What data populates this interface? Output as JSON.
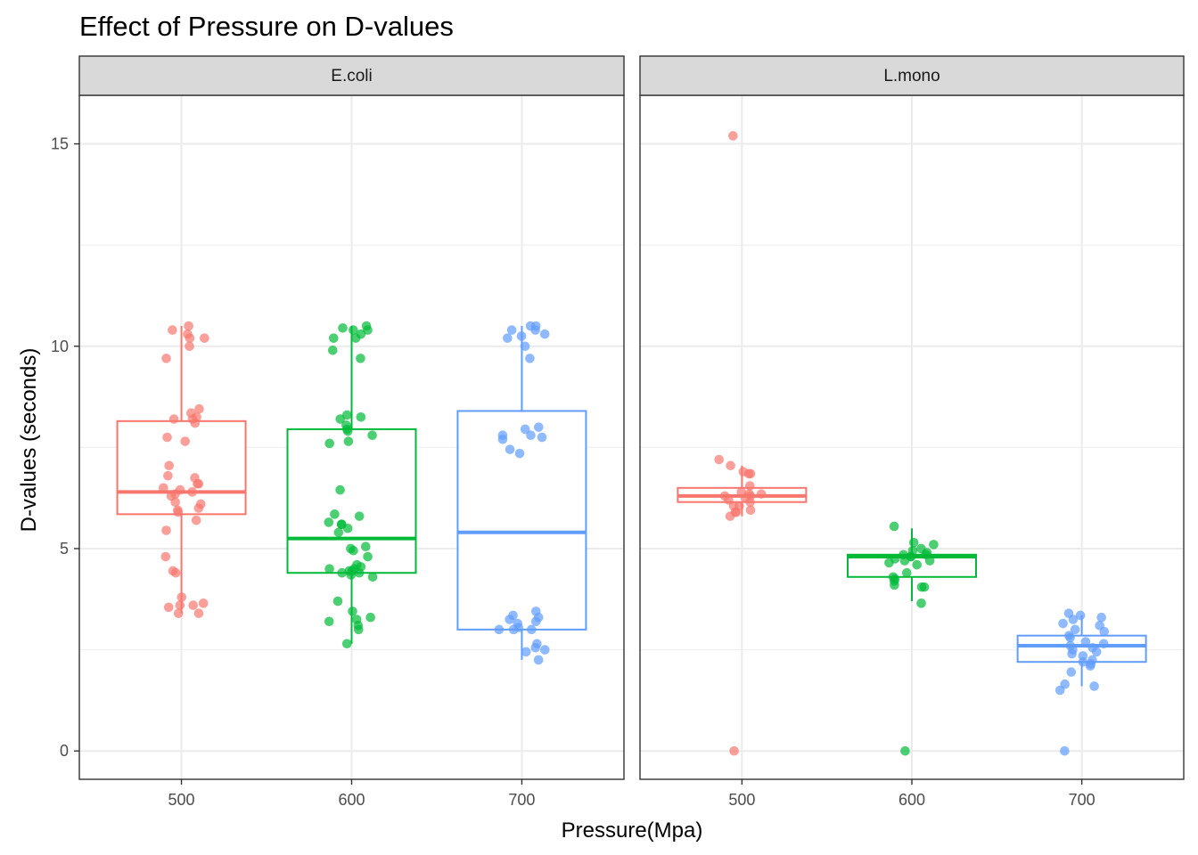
{
  "chart_data": {
    "type": "boxplot",
    "title": "Effect of Pressure on D-values",
    "xlabel": "Pressure(Mpa)",
    "ylabel": "D-values (seconds)",
    "ylim": [
      -0.7,
      16.2
    ],
    "y_ticks": [
      0,
      5,
      10,
      15
    ],
    "x_categories": [
      "500",
      "600",
      "700"
    ],
    "grid": true,
    "legend": "none",
    "series_colors": {
      "500": "#F8766D",
      "600": "#00BA38",
      "700": "#619CFF"
    },
    "panels": [
      {
        "name": "E.coli",
        "boxes": [
          {
            "category": "500",
            "min": 3.4,
            "q1": 5.85,
            "median": 6.4,
            "q3": 8.15,
            "max": 10.5,
            "points": [
              10.5,
              10.4,
              10.3,
              10.2,
              10.2,
              10.0,
              9.7,
              8.45,
              8.35,
              8.25,
              8.2,
              8.2,
              8.1,
              7.75,
              7.65,
              7.05,
              6.8,
              6.75,
              6.6,
              6.6,
              6.5,
              6.45,
              6.4,
              6.35,
              6.3,
              6.15,
              6.1,
              6.0,
              5.95,
              5.9,
              5.7,
              5.45,
              4.8,
              4.45,
              4.4,
              3.8,
              3.65,
              3.6,
              3.6,
              3.55,
              3.4,
              3.4
            ]
          },
          {
            "category": "600",
            "min": 2.65,
            "q1": 4.4,
            "median": 5.25,
            "q3": 7.95,
            "max": 10.5,
            "points": [
              10.5,
              10.45,
              10.4,
              10.4,
              10.3,
              10.2,
              10.2,
              9.9,
              9.7,
              8.3,
              8.25,
              8.2,
              8.05,
              7.95,
              7.9,
              7.8,
              7.65,
              7.6,
              6.45,
              5.85,
              5.8,
              5.65,
              5.6,
              5.6,
              5.5,
              5.4,
              5.05,
              5.0,
              4.95,
              4.8,
              4.6,
              4.55,
              4.5,
              4.5,
              4.45,
              4.45,
              4.4,
              4.4,
              4.35,
              4.3,
              3.7,
              3.45,
              3.3,
              3.25,
              3.2,
              3.1,
              3.0,
              2.65
            ]
          },
          {
            "category": "700",
            "min": 2.25,
            "q1": 3.0,
            "median": 5.4,
            "q3": 8.4,
            "max": 10.5,
            "points": [
              10.5,
              10.5,
              10.4,
              10.4,
              10.3,
              10.25,
              10.2,
              10.0,
              9.7,
              8.0,
              7.95,
              7.8,
              7.8,
              7.75,
              7.7,
              7.45,
              7.35,
              3.45,
              3.35,
              3.3,
              3.25,
              3.2,
              3.15,
              3.05,
              3.0,
              3.0,
              3.0,
              2.65,
              2.55,
              2.5,
              2.45,
              2.25
            ]
          }
        ]
      },
      {
        "name": "L.mono",
        "boxes": [
          {
            "category": "500",
            "min": 5.8,
            "q1": 6.15,
            "median": 6.3,
            "q3": 6.5,
            "max": 7.05,
            "points": [
              15.2,
              7.2,
              7.05,
              6.9,
              6.85,
              6.85,
              6.55,
              6.4,
              6.35,
              6.35,
              6.3,
              6.3,
              6.25,
              6.2,
              6.15,
              6.05,
              6.05,
              5.95,
              5.9,
              5.9,
              5.8,
              0.0
            ]
          },
          {
            "category": "600",
            "min": 3.7,
            "q1": 4.3,
            "median": 4.8,
            "q3": 4.85,
            "max": 5.5,
            "points": [
              5.55,
              5.15,
              5.1,
              5.0,
              4.95,
              4.9,
              4.85,
              4.85,
              4.8,
              4.8,
              4.75,
              4.7,
              4.7,
              4.65,
              4.6,
              4.4,
              4.3,
              4.25,
              4.2,
              4.1,
              4.05,
              4.05,
              3.65,
              0.0
            ]
          },
          {
            "category": "700",
            "min": 1.6,
            "q1": 2.2,
            "median": 2.6,
            "q3": 2.85,
            "max": 3.35,
            "points": [
              3.4,
              3.35,
              3.3,
              3.25,
              3.15,
              3.1,
              3.0,
              2.95,
              2.85,
              2.8,
              2.7,
              2.65,
              2.6,
              2.55,
              2.5,
              2.45,
              2.4,
              2.35,
              2.25,
              2.2,
              2.15,
              2.1,
              1.95,
              1.65,
              1.6,
              1.5,
              0.0
            ]
          }
        ]
      }
    ]
  }
}
